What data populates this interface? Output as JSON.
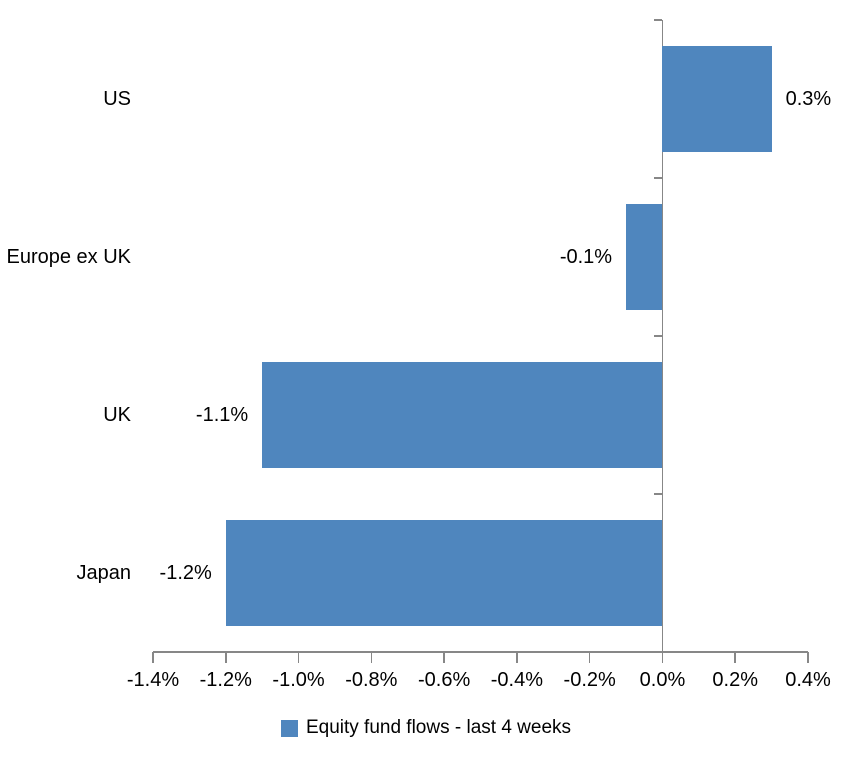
{
  "chart_data": {
    "type": "bar",
    "orientation": "horizontal",
    "title": "",
    "xlabel": "",
    "ylabel": "",
    "categories": [
      "US",
      "Europe ex UK",
      "UK",
      "Japan"
    ],
    "series": [
      {
        "name": "Equity fund flows - last 4 weeks",
        "values": [
          0.3,
          -0.1,
          -1.1,
          -1.2
        ],
        "data_labels": [
          "0.3%",
          "-0.1%",
          "-1.1%",
          "-1.2%"
        ]
      }
    ],
    "xlim": [
      -1.4,
      0.4
    ],
    "x_ticks": [
      -1.4,
      -1.2,
      -1.0,
      -0.8,
      -0.6,
      -0.4,
      -0.2,
      0.0,
      0.2,
      0.4
    ],
    "x_tick_labels": [
      "-1.4%",
      "-1.2%",
      "-1.0%",
      "-0.8%",
      "-0.6%",
      "-0.4%",
      "-0.2%",
      "0.0%",
      "0.2%",
      "0.4%"
    ],
    "grid": false,
    "legend_position": "bottom",
    "legend_label": "Equity fund flows - last 4 weeks",
    "colors": {
      "bar": "#4F86BE",
      "axis": "#878787",
      "text": "#000000",
      "background": "#FFFFFF"
    }
  }
}
